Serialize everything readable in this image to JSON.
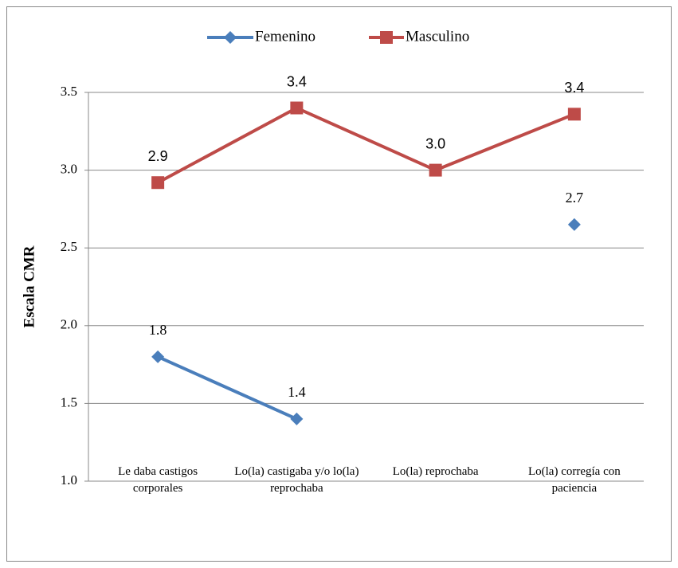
{
  "chart_data": {
    "type": "line",
    "y_label": "Escala CMR",
    "categories": [
      "Le daba castigos corporales",
      "Lo(la) castigaba y/o lo(la) reprochaba",
      "Lo(la) reprochaba",
      "Lo(la) corregía con paciencia"
    ],
    "series": [
      {
        "name": "Femenino",
        "color": "#4a7ebb",
        "values": [
          1.8,
          1.4,
          null,
          2.65
        ],
        "value_labels": [
          "1.8",
          "1.4",
          null,
          "2.7"
        ]
      },
      {
        "name": "Masculino",
        "color": "#be4b48",
        "values": [
          2.92,
          3.4,
          3.0,
          3.36
        ],
        "value_labels": [
          "2.9",
          "3.4",
          "3.0",
          "3.4"
        ]
      }
    ],
    "ylim": [
      1.0,
      3.5
    ],
    "yticks": [
      {
        "value": 1.0,
        "label": "1.0"
      },
      1.5,
      {
        "value": 2.0,
        "label": "2.0"
      },
      2.5,
      {
        "value": 3.0,
        "label": "3.0"
      },
      3.5
    ],
    "grid": true,
    "legend": "top"
  }
}
